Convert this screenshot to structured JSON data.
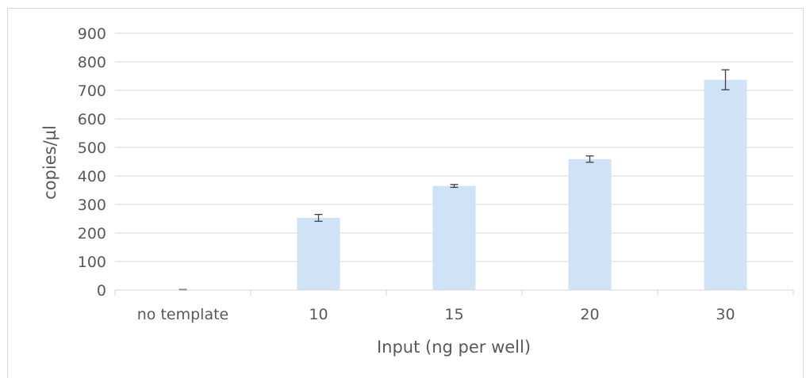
{
  "chart_data": {
    "type": "bar",
    "title": "",
    "xlabel": "Input (ng per well)",
    "ylabel": "copies/µl",
    "categories": [
      "no template",
      "10",
      "15",
      "20",
      "30"
    ],
    "series": [
      {
        "values": [
          1,
          253,
          365,
          459,
          737
        ],
        "error": [
          1,
          12,
          5,
          11,
          35
        ]
      }
    ],
    "ylim": [
      0,
      900
    ],
    "yticks": [
      0,
      100,
      200,
      300,
      400,
      500,
      600,
      700,
      800,
      900
    ],
    "grid": true,
    "legend": "none",
    "colors": {
      "bar": "#cfe2f6",
      "grid": "#d9d9d9",
      "error": "#404040",
      "text": "#595959"
    }
  }
}
